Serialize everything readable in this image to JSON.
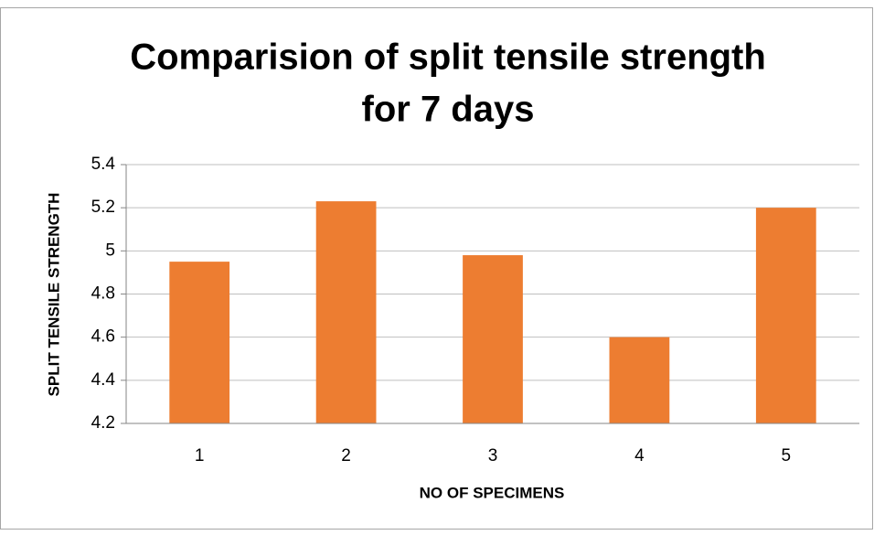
{
  "chart_data": {
    "type": "bar",
    "title": [
      "Comparision of split tensile strength",
      "for 7 days"
    ],
    "x_label": "NO OF SPECIMENS",
    "y_label": "SPLIT TENSILE STRENGTH",
    "categories": [
      "1",
      "2",
      "3",
      "4",
      "5"
    ],
    "values": [
      4.95,
      5.23,
      4.98,
      4.6,
      5.2
    ],
    "color": "#ed7d31",
    "ylim": [
      4.2,
      5.4
    ],
    "yticks": [
      4.2,
      4.4,
      4.6,
      4.8,
      5,
      5.2,
      5.4
    ],
    "grid": true
  }
}
